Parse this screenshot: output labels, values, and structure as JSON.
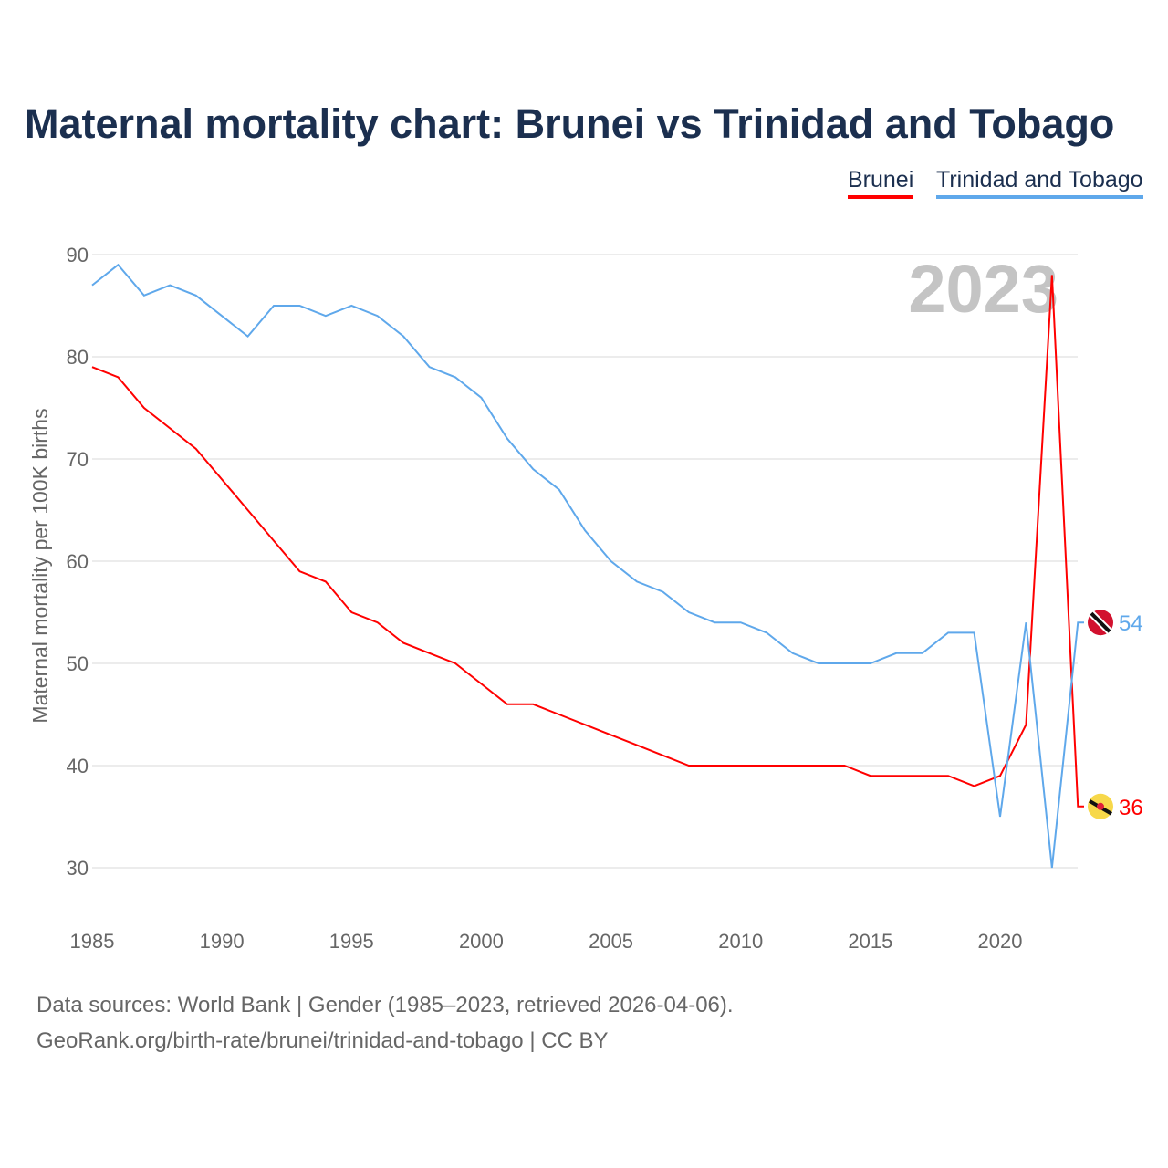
{
  "chart_data": {
    "type": "line",
    "title": "Maternal mortality chart: Brunei vs Trinidad and Tobago",
    "ylabel": "Maternal mortality per 100K births",
    "xlabel": "",
    "ylim": [
      30,
      90
    ],
    "xlim": [
      1985,
      2023
    ],
    "yticks": [
      "30",
      "40",
      "50",
      "60",
      "70",
      "80",
      "90"
    ],
    "xticks": [
      "1985",
      "1990",
      "1995",
      "2000",
      "2005",
      "2010",
      "2015",
      "2020"
    ],
    "year_label": "2023",
    "legend": "top-right",
    "x": [
      1985,
      1986,
      1987,
      1988,
      1989,
      1990,
      1991,
      1992,
      1993,
      1994,
      1995,
      1996,
      1997,
      1998,
      1999,
      2000,
      2001,
      2002,
      2003,
      2004,
      2005,
      2006,
      2007,
      2008,
      2009,
      2010,
      2011,
      2012,
      2013,
      2014,
      2015,
      2016,
      2017,
      2018,
      2019,
      2020,
      2021,
      2022,
      2023
    ],
    "series": [
      {
        "name": "Brunei",
        "color": "#ff0000",
        "end_label": "36",
        "values": [
          79,
          78,
          75,
          73,
          71,
          68,
          65,
          62,
          59,
          58,
          55,
          54,
          52,
          51,
          50,
          48,
          46,
          46,
          45,
          44,
          43,
          42,
          41,
          40,
          40,
          40,
          40,
          40,
          40,
          40,
          39,
          39,
          39,
          39,
          38,
          39,
          44,
          88,
          36
        ]
      },
      {
        "name": "Trinidad and Tobago",
        "color": "#5fa8eb",
        "end_label": "54",
        "values": [
          87,
          89,
          86,
          87,
          86,
          84,
          82,
          85,
          85,
          84,
          85,
          84,
          82,
          79,
          78,
          76,
          72,
          69,
          67,
          63,
          60,
          58,
          57,
          55,
          54,
          54,
          53,
          51,
          50,
          50,
          50,
          51,
          51,
          53,
          53,
          35,
          54,
          30,
          54
        ]
      }
    ]
  },
  "footer": {
    "line1": "Data sources: World Bank | Gender (1985–2023, retrieved 2026-04-06).",
    "line2": "GeoRank.org/birth-rate/brunei/trinidad-and-tobago | CC BY"
  }
}
